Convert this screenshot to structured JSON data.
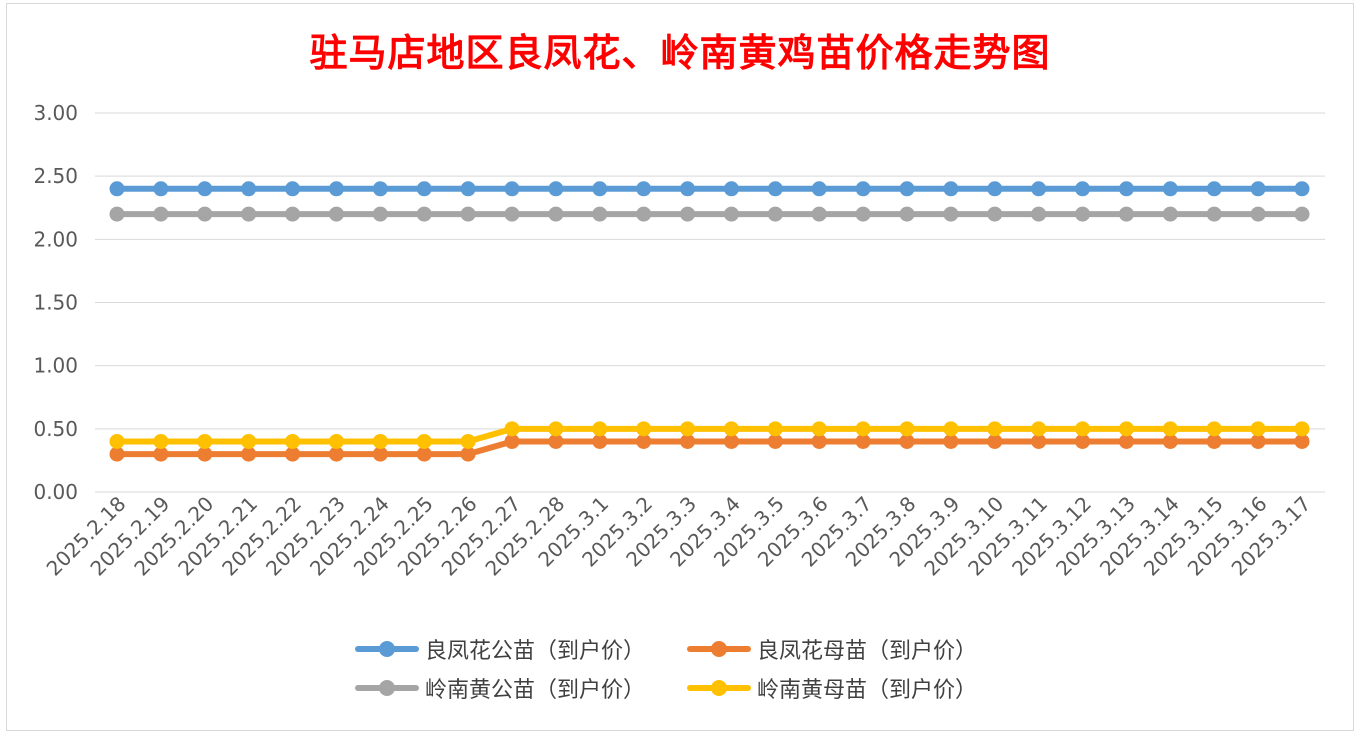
{
  "chart_data": {
    "type": "line",
    "title": "驻马店地区良凤花、岭南黄鸡苗价格走势图",
    "xlabel": "",
    "ylabel": "",
    "ylim": [
      0,
      3
    ],
    "yticks": [
      "0.00",
      "0.50",
      "1.00",
      "1.50",
      "2.00",
      "2.50",
      "3.00"
    ],
    "grid": true,
    "legend_position": "bottom",
    "categories": [
      "2025.2.18",
      "2025.2.19",
      "2025.2.20",
      "2025.2.21",
      "2025.2.22",
      "2025.2.23",
      "2025.2.24",
      "2025.2.25",
      "2025.2.26",
      "2025.2.27",
      "2025.2.28",
      "2025.3.1",
      "2025.3.2",
      "2025.3.3",
      "2025.3.4",
      "2025.3.5",
      "2025.3.6",
      "2025.3.7",
      "2025.3.8",
      "2025.3.9",
      "2025.3.10",
      "2025.3.11",
      "2025.3.12",
      "2025.3.13",
      "2025.3.14",
      "2025.3.15",
      "2025.3.16",
      "2025.3.17"
    ],
    "series": [
      {
        "name": "良凤花公苗（到户价）",
        "color": "#5b9bd5",
        "values": [
          2.4,
          2.4,
          2.4,
          2.4,
          2.4,
          2.4,
          2.4,
          2.4,
          2.4,
          2.4,
          2.4,
          2.4,
          2.4,
          2.4,
          2.4,
          2.4,
          2.4,
          2.4,
          2.4,
          2.4,
          2.4,
          2.4,
          2.4,
          2.4,
          2.4,
          2.4,
          2.4,
          2.4
        ]
      },
      {
        "name": "良凤花母苗（到户价）",
        "color": "#ed7d31",
        "values": [
          0.3,
          0.3,
          0.3,
          0.3,
          0.3,
          0.3,
          0.3,
          0.3,
          0.3,
          0.4,
          0.4,
          0.4,
          0.4,
          0.4,
          0.4,
          0.4,
          0.4,
          0.4,
          0.4,
          0.4,
          0.4,
          0.4,
          0.4,
          0.4,
          0.4,
          0.4,
          0.4,
          0.4
        ]
      },
      {
        "name": "岭南黄公苗（到户价）",
        "color": "#a5a5a5",
        "values": [
          2.2,
          2.2,
          2.2,
          2.2,
          2.2,
          2.2,
          2.2,
          2.2,
          2.2,
          2.2,
          2.2,
          2.2,
          2.2,
          2.2,
          2.2,
          2.2,
          2.2,
          2.2,
          2.2,
          2.2,
          2.2,
          2.2,
          2.2,
          2.2,
          2.2,
          2.2,
          2.2,
          2.2
        ]
      },
      {
        "name": "岭南黄母苗（到户价）",
        "color": "#ffc000",
        "values": [
          0.4,
          0.4,
          0.4,
          0.4,
          0.4,
          0.4,
          0.4,
          0.4,
          0.4,
          0.5,
          0.5,
          0.5,
          0.5,
          0.5,
          0.5,
          0.5,
          0.5,
          0.5,
          0.5,
          0.5,
          0.5,
          0.5,
          0.5,
          0.5,
          0.5,
          0.5,
          0.5,
          0.5
        ]
      }
    ]
  }
}
